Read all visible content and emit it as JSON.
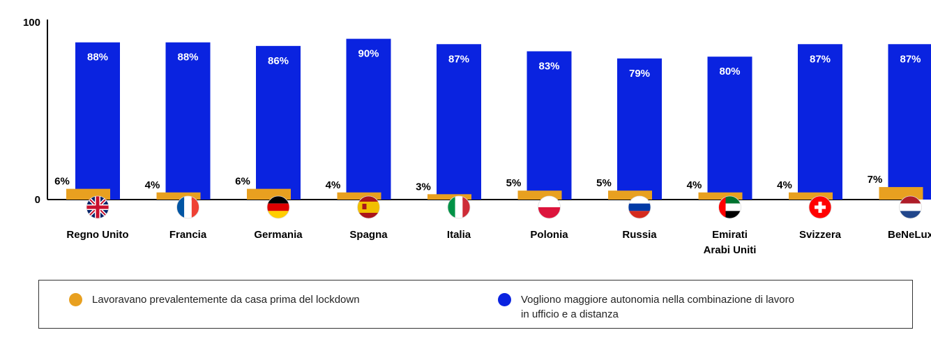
{
  "chart_data": {
    "type": "bar",
    "categories": [
      [
        "Regno Unito"
      ],
      [
        "Francia"
      ],
      [
        "Germania"
      ],
      [
        "Spagna"
      ],
      [
        "Italia"
      ],
      [
        "Polonia"
      ],
      [
        "Russia"
      ],
      [
        "Emirati",
        "Arabi Uniti"
      ],
      [
        "Svizzera"
      ],
      [
        "BeNeLux"
      ]
    ],
    "flags": [
      "uk-flag-icon",
      "france-flag-icon",
      "germany-flag-icon",
      "spain-flag-icon",
      "italy-flag-icon",
      "poland-flag-icon",
      "russia-flag-icon",
      "uae-flag-icon",
      "switzerland-flag-icon",
      "benelux-flag-icon"
    ],
    "series": [
      {
        "name": "Lavoravano prevalentemente da casa prima del lockdown",
        "color": "#E8A020",
        "values": [
          6,
          4,
          6,
          4,
          3,
          5,
          5,
          4,
          4,
          7
        ],
        "labels": [
          "6%",
          "4%",
          "6%",
          "4%",
          "3%",
          "5%",
          "5%",
          "4%",
          "4%",
          "7%"
        ]
      },
      {
        "name": "Vogliono maggiore autonomia nella combinazione di lavoro in ufficio e a distanza",
        "color": "#0A23E0",
        "values": [
          88,
          88,
          86,
          90,
          87,
          83,
          79,
          80,
          87,
          87
        ],
        "labels": [
          "88%",
          "88%",
          "86%",
          "90%",
          "87%",
          "83%",
          "79%",
          "80%",
          "87%",
          "87%"
        ]
      }
    ],
    "y_ticks": [
      "0",
      "100"
    ],
    "ylim": [
      0,
      100
    ],
    "grid": false,
    "legend_position": "bottom"
  },
  "legend": {
    "item1": {
      "label": "Lavoravano prevalentemente da casa prima del lockdown",
      "color": "#E8A020"
    },
    "item2": {
      "lines": [
        "Vogliono maggiore autonomia nella combinazione di lavoro",
        "in ufficio e a distanza"
      ],
      "color": "#0A23E0"
    }
  }
}
